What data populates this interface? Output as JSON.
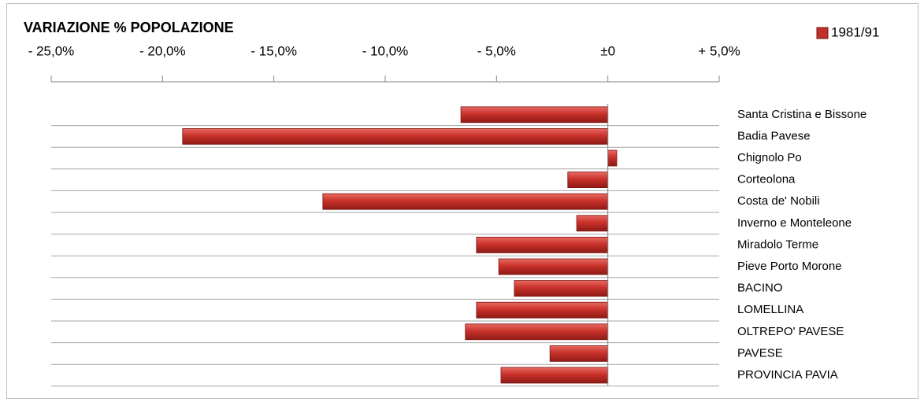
{
  "chart_data": {
    "type": "barh",
    "title": "VARIAZIONE % POPOLAZIONE",
    "categories": [
      "Santa Cristina e Bissone",
      "Badia Pavese",
      "Chignolo Po",
      "Corteolona",
      "Costa de' Nobili",
      "Inverno e Monteleone",
      "Miradolo Terme",
      "Pieve Porto Morone",
      "BACINO",
      "LOMELLINA",
      "OLTREPO' PAVESE",
      "PAVESE",
      "PROVINCIA PAVIA"
    ],
    "series": [
      {
        "name": "1981/91",
        "color": "#c0302a",
        "values": [
          -6.6,
          -19.1,
          0.4,
          -1.8,
          -12.8,
          -1.4,
          -5.9,
          -4.9,
          -4.2,
          -5.9,
          -6.4,
          -2.6,
          -4.8
        ]
      }
    ],
    "xlim": [
      -25,
      5
    ],
    "xticks": [
      {
        "value": -25,
        "label": "- 25,0%"
      },
      {
        "value": -20,
        "label": "- 20,0%"
      },
      {
        "value": -15,
        "label": "- 15,0%"
      },
      {
        "value": -10,
        "label": "- 10,0%"
      },
      {
        "value": -5,
        "label": "- 5,0%"
      },
      {
        "value": 0,
        "label": "±0"
      },
      {
        "value": 5,
        "label": "+ 5,0%"
      }
    ],
    "legend": "top-right"
  }
}
